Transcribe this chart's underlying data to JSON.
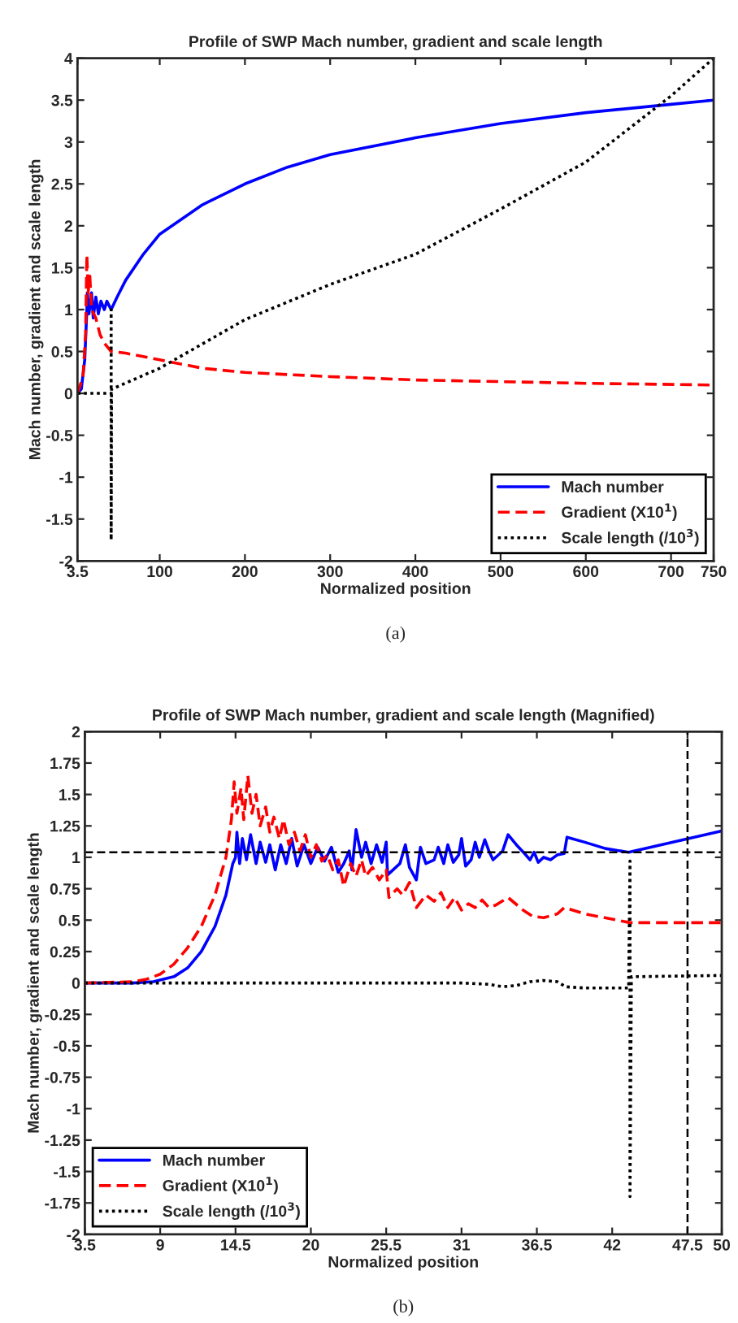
{
  "chart_data": [
    {
      "type": "line",
      "title": "Profile of SWP Mach number, gradient and scale length",
      "xlabel": "Normalized position",
      "ylabel": "Mach number, gradient and scale length",
      "xlim": [
        3.5,
        750
      ],
      "xticks": [
        3.5,
        100,
        200,
        300,
        400,
        500,
        600,
        700,
        750
      ],
      "ylim": [
        -2,
        4
      ],
      "yticks": [
        -2,
        -1.5,
        -1,
        -0.5,
        0,
        0.5,
        1,
        1.5,
        2,
        2.5,
        3,
        3.5,
        4
      ],
      "grid": false,
      "legend": "bottom right",
      "annotations": [
        "(a)"
      ],
      "series": [
        {
          "name": "Mach number",
          "color": "#0000ff",
          "line_style": "solid",
          "x": [
            3.5,
            8,
            12,
            14.5,
            15,
            17,
            20,
            22,
            25,
            28,
            31,
            35,
            38,
            43,
            50,
            60,
            80,
            100,
            150,
            200,
            250,
            300,
            400,
            500,
            600,
            700,
            750
          ],
          "values": [
            0,
            0.05,
            0.4,
            1.0,
            1.2,
            0.95,
            1.2,
            0.9,
            1.15,
            0.95,
            1.1,
            1.0,
            1.1,
            1.0,
            1.15,
            1.35,
            1.65,
            1.9,
            2.25,
            2.5,
            2.7,
            2.85,
            3.05,
            3.22,
            3.35,
            3.45,
            3.5
          ]
        },
        {
          "name": "Gradient (X10$^{1}$)",
          "color": "#ff0000",
          "line_style": "dashed",
          "x": [
            3.5,
            10,
            13,
            14.5,
            16,
            18,
            20,
            25,
            30,
            35,
            43,
            60,
            100,
            150,
            200,
            300,
            400,
            500,
            600,
            750
          ],
          "values": [
            0,
            0.2,
            0.7,
            1.65,
            1.2,
            1.4,
            1.0,
            0.9,
            0.7,
            0.6,
            0.5,
            0.48,
            0.4,
            0.3,
            0.25,
            0.2,
            0.16,
            0.14,
            0.12,
            0.1
          ]
        },
        {
          "name": "Scale length (/10$^{3}$)",
          "color": "#000000",
          "line_style": "dotted",
          "x": [
            3.5,
            43,
            43,
            43,
            43.5,
            100,
            200,
            300,
            400,
            500,
            600,
            700,
            750
          ],
          "values": [
            0,
            0,
            1.0,
            -1.75,
            0.05,
            0.3,
            0.88,
            1.3,
            1.66,
            2.2,
            2.76,
            3.55,
            4.0
          ]
        }
      ]
    },
    {
      "type": "line",
      "title": "Profile of SWP Mach number, gradient and scale length (Magnified)",
      "xlabel": "Normalized position",
      "ylabel": "Mach number, gradient and scale length",
      "xlim": [
        3.5,
        50
      ],
      "xticks": [
        3.5,
        9,
        14.5,
        20,
        25.5,
        31,
        36.5,
        42,
        47.5,
        50
      ],
      "ylim": [
        -2,
        2
      ],
      "yticks": [
        -2,
        -1.75,
        -1.5,
        -1.25,
        -1,
        -0.75,
        -0.5,
        -0.25,
        0,
        0.25,
        0.5,
        0.75,
        1,
        1.25,
        1.5,
        1.75,
        2
      ],
      "grid": false,
      "legend": "bottom left",
      "annotations": [
        "(b)"
      ],
      "ref_lines": [
        {
          "axis": "y",
          "value": 1.04,
          "color": "#000000",
          "line_style": "dashed"
        },
        {
          "axis": "x",
          "value": 47.5,
          "color": "#000000",
          "line_style": "dashed"
        }
      ],
      "series": [
        {
          "name": "Mach number",
          "color": "#0000ff",
          "line_style": "solid",
          "x": [
            3.5,
            7,
            8.5,
            10,
            11,
            12,
            13,
            13.8,
            14.3,
            14.5,
            14.6,
            14.8,
            15,
            15.3,
            15.6,
            16,
            16.3,
            16.7,
            17,
            17.4,
            17.8,
            18.2,
            18.6,
            19,
            19.5,
            20,
            20.5,
            21,
            21.5,
            22,
            22.4,
            22.8,
            23,
            23.3,
            23.7,
            24,
            24.4,
            24.8,
            25.2,
            25.5,
            25.6,
            26.5,
            26.9,
            27.2,
            27.7,
            28,
            28.4,
            29,
            29.3,
            29.7,
            30,
            30.4,
            30.8,
            31,
            31.3,
            31.7,
            32,
            32.3,
            32.7,
            33,
            33.3,
            34,
            34.4,
            35,
            35.6,
            36,
            36.3,
            36.6,
            37,
            37.5,
            38,
            38.5,
            38.7,
            40,
            41.5,
            43.2,
            50
          ],
          "values": [
            0,
            0,
            0.01,
            0.05,
            0.12,
            0.25,
            0.45,
            0.7,
            0.95,
            1.0,
            1.2,
            0.95,
            1.15,
            0.98,
            1.18,
            0.95,
            1.12,
            0.96,
            1.1,
            0.9,
            1.1,
            0.95,
            1.15,
            0.93,
            1.1,
            0.95,
            1.08,
            0.97,
            1.08,
            0.88,
            0.95,
            1.05,
            0.9,
            1.22,
            1.0,
            1.12,
            0.95,
            1.1,
            0.96,
            1.12,
            0.86,
            0.95,
            1.1,
            0.92,
            0.82,
            1.08,
            0.95,
            0.98,
            1.08,
            0.95,
            1.1,
            0.96,
            1.02,
            1.15,
            0.93,
            0.98,
            1.12,
            1.0,
            1.14,
            1.05,
            0.98,
            1.05,
            1.18,
            1.1,
            1.03,
            0.98,
            1.04,
            0.96,
            1.0,
            0.98,
            1.02,
            1.03,
            1.16,
            1.12,
            1.07,
            1.04,
            1.21
          ]
        },
        {
          "name": "Gradient (X10$^{1}$)",
          "color": "#ff0000",
          "line_style": "dashed",
          "x": [
            3.5,
            7,
            8,
            9,
            10,
            11,
            12,
            13,
            13.8,
            14.2,
            14.4,
            14.6,
            14.9,
            15.1,
            15.4,
            15.7,
            16,
            16.3,
            16.7,
            17,
            17.3,
            17.7,
            18,
            18.4,
            18.8,
            19.2,
            19.6,
            20,
            20.4,
            20.8,
            21.2,
            21.6,
            22,
            22.4,
            22.9,
            23.3,
            23.7,
            24,
            24.5,
            25,
            25.5,
            25.7,
            26.3,
            26.7,
            27.2,
            27.7,
            28.4,
            29,
            29.5,
            30,
            30.5,
            31,
            31.5,
            32,
            32.5,
            33,
            33.5,
            34.4,
            35.5,
            36.2,
            37,
            38,
            38.5,
            40,
            43.3,
            50
          ],
          "values": [
            0,
            0.01,
            0.03,
            0.07,
            0.15,
            0.28,
            0.45,
            0.7,
            1.0,
            1.3,
            1.6,
            1.35,
            1.55,
            1.3,
            1.65,
            1.35,
            1.5,
            1.25,
            1.4,
            1.2,
            1.32,
            1.15,
            1.3,
            1.1,
            1.2,
            1.05,
            1.18,
            1.0,
            1.1,
            0.97,
            1.02,
            0.9,
            0.98,
            0.77,
            0.95,
            0.85,
            0.98,
            0.85,
            0.92,
            0.82,
            0.9,
            0.68,
            0.75,
            0.7,
            0.8,
            0.6,
            0.7,
            0.65,
            0.72,
            0.6,
            0.68,
            0.58,
            0.63,
            0.6,
            0.66,
            0.6,
            0.62,
            0.68,
            0.58,
            0.53,
            0.52,
            0.55,
            0.6,
            0.55,
            0.48,
            0.48
          ]
        },
        {
          "name": "Scale length (/10$^{3}$)",
          "color": "#000000",
          "line_style": "dotted",
          "x": [
            3.5,
            14,
            20,
            31,
            33,
            34,
            35,
            36,
            37,
            38,
            38.6,
            40,
            43.2,
            43.3,
            43.3,
            43.4,
            50
          ],
          "values": [
            0,
            0,
            0,
            0,
            -0.01,
            -0.03,
            -0.02,
            0.01,
            0.02,
            0.01,
            -0.03,
            -0.04,
            -0.04,
            0.97,
            -1.7,
            0.05,
            0.06
          ]
        }
      ]
    }
  ]
}
